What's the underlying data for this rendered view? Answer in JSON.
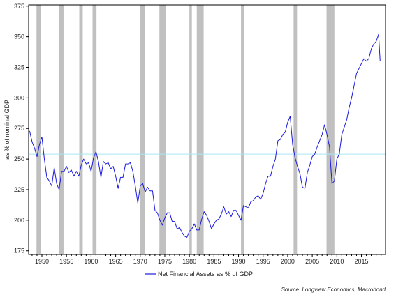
{
  "chart_data": {
    "type": "line",
    "ylabel": "as % of nominal GDP",
    "xlabel": "",
    "xlim": [
      1947.3,
      2019.9
    ],
    "ylim": [
      172,
      376
    ],
    "x_ticks": [
      1950,
      1955,
      1960,
      1965,
      1970,
      1975,
      1980,
      1985,
      1990,
      1995,
      2000,
      2005,
      2010,
      2015
    ],
    "y_ticks": [
      175,
      200,
      225,
      250,
      275,
      300,
      325,
      350,
      375
    ],
    "grid": false,
    "legend_position": "bottom-center",
    "reference_line": {
      "value": 254,
      "color": "#a8e6f0"
    },
    "recessions": [
      [
        1948.9,
        1949.8
      ],
      [
        1953.5,
        1954.4
      ],
      [
        1957.6,
        1958.3
      ],
      [
        1960.3,
        1961.1
      ],
      [
        1969.9,
        1970.9
      ],
      [
        1973.9,
        1975.2
      ],
      [
        1980.0,
        1980.5
      ],
      [
        1981.5,
        1982.9
      ],
      [
        1990.5,
        1991.2
      ],
      [
        2001.2,
        2001.9
      ],
      [
        2007.9,
        2009.5
      ]
    ],
    "recession_color": "#c0c0c0",
    "series": [
      {
        "name": "Net Financial Assets as % of GDP",
        "color": "#1a1adc",
        "x": [
          1947.5,
          1948.0,
          1948.5,
          1949.0,
          1949.5,
          1950.0,
          1950.5,
          1951.0,
          1951.5,
          1952.0,
          1952.5,
          1953.0,
          1953.5,
          1954.0,
          1954.5,
          1955.0,
          1955.5,
          1956.0,
          1956.5,
          1957.0,
          1957.5,
          1958.0,
          1958.5,
          1959.0,
          1959.5,
          1960.0,
          1960.5,
          1961.0,
          1961.5,
          1962.0,
          1962.5,
          1963.0,
          1963.5,
          1964.0,
          1964.5,
          1965.0,
          1965.5,
          1966.0,
          1966.5,
          1967.0,
          1967.5,
          1968.0,
          1968.5,
          1969.0,
          1969.5,
          1970.0,
          1970.5,
          1971.0,
          1971.5,
          1972.0,
          1972.5,
          1973.0,
          1973.5,
          1974.0,
          1974.5,
          1975.0,
          1975.5,
          1976.0,
          1976.5,
          1977.0,
          1977.5,
          1978.0,
          1978.5,
          1979.0,
          1979.5,
          1980.0,
          1980.5,
          1981.0,
          1981.5,
          1982.0,
          1982.5,
          1983.0,
          1983.5,
          1984.0,
          1984.5,
          1985.0,
          1985.5,
          1986.0,
          1986.5,
          1987.0,
          1987.5,
          1988.0,
          1988.5,
          1989.0,
          1989.5,
          1990.0,
          1990.5,
          1991.0,
          1991.5,
          1992.0,
          1992.5,
          1993.0,
          1993.5,
          1994.0,
          1994.5,
          1995.0,
          1995.5,
          1996.0,
          1996.5,
          1997.0,
          1997.5,
          1998.0,
          1998.5,
          1999.0,
          1999.5,
          2000.0,
          2000.5,
          2001.0,
          2001.5,
          2002.0,
          2002.5,
          2003.0,
          2003.5,
          2004.0,
          2004.5,
          2005.0,
          2005.5,
          2006.0,
          2006.5,
          2007.0,
          2007.5,
          2008.0,
          2008.5,
          2009.0,
          2009.5,
          2010.0,
          2010.5,
          2011.0,
          2011.5,
          2012.0,
          2012.5,
          2013.0,
          2013.5,
          2014.0,
          2014.5,
          2015.0,
          2015.5,
          2016.0,
          2016.5,
          2017.0,
          2017.5,
          2018.0,
          2018.5,
          2018.8
        ],
        "values": [
          273,
          264,
          259,
          252,
          262,
          268,
          250,
          235,
          232,
          228,
          243,
          230,
          225,
          240,
          240,
          244,
          239,
          241,
          236,
          240,
          236,
          245,
          250,
          246,
          247,
          240,
          251,
          256,
          248,
          235,
          248,
          246,
          247,
          242,
          244,
          236,
          226,
          235,
          235,
          246,
          246,
          247,
          240,
          228,
          214,
          228,
          230,
          223,
          227,
          224,
          224,
          208,
          206,
          200,
          196,
          202,
          206,
          206,
          199,
          199,
          193,
          194,
          190,
          187,
          186,
          191,
          193,
          197,
          192,
          192,
          201,
          207,
          204,
          199,
          193,
          197,
          200,
          201,
          205,
          211,
          205,
          207,
          203,
          208,
          208,
          204,
          200,
          212,
          211,
          210,
          215,
          216,
          219,
          220,
          217,
          222,
          230,
          236,
          236,
          244,
          250,
          265,
          266,
          270,
          272,
          280,
          285,
          262,
          251,
          244,
          238,
          227,
          226,
          239,
          245,
          252,
          254,
          260,
          265,
          270,
          278,
          270,
          260,
          230,
          232,
          250,
          254,
          270,
          276,
          282,
          292,
          300,
          310,
          320,
          324,
          328,
          332,
          330,
          332,
          340,
          344,
          346,
          352,
          330
        ]
      }
    ]
  },
  "legend": {
    "label": "Net Financial Assets as % of GDP"
  },
  "source": "Source: Longview Economics, Macrobond"
}
